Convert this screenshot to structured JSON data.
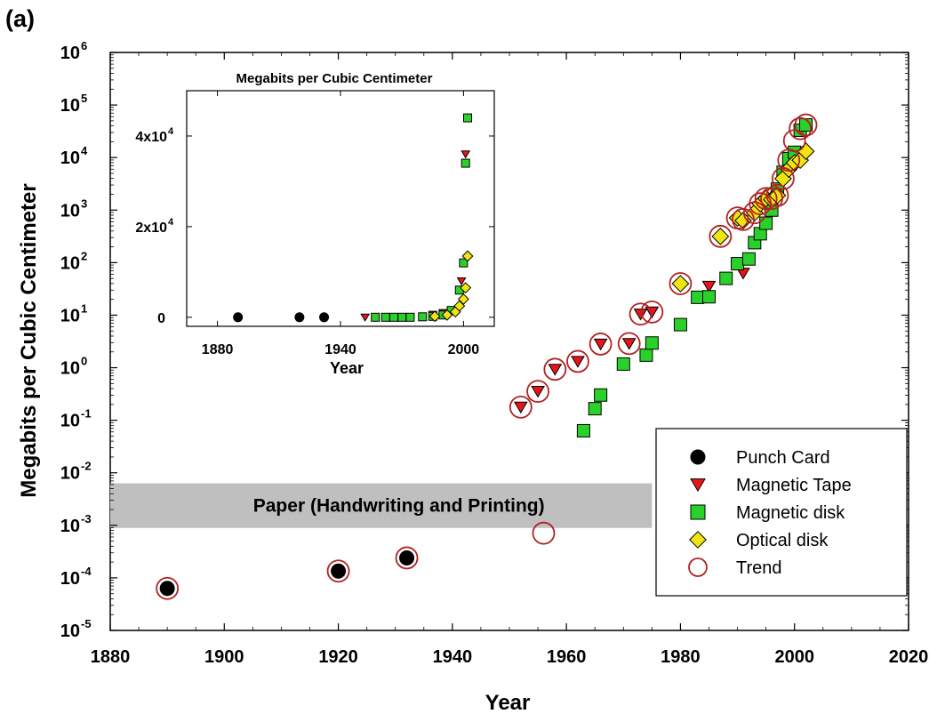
{
  "panel_label": "(a)",
  "chart_data": [
    {
      "id": "main",
      "type": "scatter",
      "title": "",
      "xlabel": "Year",
      "ylabel": "Megabits per Cubic Centimeter",
      "xlim": [
        1880,
        2020
      ],
      "ylim": [
        -5,
        6
      ],
      "yscale": "log",
      "y_values_as": "log10",
      "x_ticks": [
        1880,
        1900,
        1920,
        1940,
        1960,
        1980,
        2000,
        2020
      ],
      "x_tick_labels": [
        "1880",
        "1900",
        "1920",
        "1940",
        "1960",
        "1980",
        "2000",
        "2020"
      ],
      "y_ticks": [
        -5,
        -4,
        -3,
        -2,
        -1,
        0,
        1,
        2,
        3,
        4,
        5,
        6
      ],
      "y_tick_base": "10",
      "grid": false,
      "legend_position": "bottom-right",
      "band": {
        "label": "Paper (Handwriting and Printing)",
        "x": [
          1880,
          1975
        ],
        "y": [
          -3.05,
          -2.2
        ],
        "color": "#bfbfbf"
      },
      "colors": {
        "punch": "#000000",
        "tape": "#e8141b",
        "disk": "#2bd12b",
        "optical": "#f2e413",
        "trend": "#b22222"
      },
      "series": [
        {
          "name": "Punch Card",
          "marker": "circle",
          "x": [
            1890,
            1920,
            1932
          ],
          "y": [
            -4.2,
            -3.87,
            -3.62
          ]
        },
        {
          "name": "Magnetic Tape",
          "marker": "triangle-down",
          "x": [
            1952,
            1955,
            1958,
            1962,
            1966,
            1971,
            1973,
            1975,
            1985,
            1991
          ],
          "y": [
            -0.75,
            -0.45,
            -0.03,
            0.12,
            0.45,
            0.46,
            1.02,
            1.06,
            1.55,
            1.8
          ]
        },
        {
          "name": "Magnetic disk",
          "marker": "square",
          "x": [
            1963,
            1965,
            1966,
            1970,
            1974,
            1975,
            1980,
            1983,
            1985,
            1988,
            1990,
            1992,
            1993,
            1994,
            1995,
            1996,
            1997,
            1998,
            1999,
            2000,
            2001,
            2002
          ],
          "y": [
            -1.2,
            -0.78,
            -0.52,
            0.07,
            0.24,
            0.47,
            0.82,
            1.34,
            1.35,
            1.7,
            1.98,
            2.07,
            2.38,
            2.55,
            2.75,
            3.0,
            3.4,
            3.72,
            3.98,
            4.1,
            4.52,
            4.62
          ]
        },
        {
          "name": "Optical disk",
          "marker": "diamond",
          "x": [
            1980,
            1987,
            1990,
            1991,
            1993,
            1994,
            1995,
            1996,
            1997,
            1998,
            1999,
            2000,
            2001,
            2002
          ],
          "y": [
            1.6,
            2.5,
            2.85,
            2.8,
            2.95,
            3.12,
            3.22,
            3.2,
            3.28,
            3.6,
            3.78,
            3.9,
            3.95,
            4.12
          ]
        },
        {
          "name": "Trend",
          "marker": "ring",
          "x": [
            1890,
            1920,
            1932,
            1952,
            1955,
            1958,
            1962,
            1966,
            1971,
            1973,
            1975,
            1980,
            1987,
            1990,
            1991,
            1993,
            1994,
            1995,
            1996,
            1997,
            1998,
            1999,
            2000,
            2001,
            2002
          ],
          "y": [
            -4.2,
            -3.87,
            -3.62,
            -0.75,
            -0.45,
            -0.03,
            0.12,
            0.45,
            0.46,
            1.02,
            1.06,
            1.6,
            2.5,
            2.85,
            2.82,
            2.95,
            3.12,
            3.22,
            3.22,
            3.28,
            3.6,
            3.95,
            4.32,
            4.55,
            4.62
          ]
        }
      ],
      "off_band_trend_point": {
        "x": 1956,
        "y": -3.15
      }
    },
    {
      "id": "inset",
      "type": "scatter",
      "title": "Megabits per Cubic Centimeter",
      "xlabel": "Year",
      "ylabel": "",
      "xlim": [
        1865,
        2015
      ],
      "ylim": [
        -2000,
        50000
      ],
      "x_ticks": [
        1880,
        1940,
        2000
      ],
      "x_tick_labels": [
        "1880",
        "1940",
        "2000"
      ],
      "y_ticks": [
        0,
        20000,
        40000
      ],
      "y_tick_labels": [
        "0",
        "2x10",
        "4x10"
      ],
      "y_tick_exponents": [
        "",
        "4",
        "4"
      ],
      "grid": false,
      "series": [
        {
          "name": "Punch Card",
          "marker": "circle",
          "x": [
            1890,
            1920,
            1932
          ],
          "y": [
            0,
            0,
            0
          ]
        },
        {
          "name": "Magnetic Tape",
          "marker": "triangle-down",
          "x": [
            1952,
            1985,
            1990,
            1999,
            2001
          ],
          "y": [
            0,
            600,
            1000,
            8000,
            36000
          ]
        },
        {
          "name": "Magnetic disk",
          "marker": "square",
          "x": [
            1957,
            1962,
            1966,
            1970,
            1974,
            1980,
            1985,
            1990,
            1994,
            1998,
            2000,
            2001,
            2002
          ],
          "y": [
            0,
            0,
            0,
            0,
            0,
            100,
            200,
            500,
            1500,
            6000,
            12000,
            34000,
            44000
          ]
        },
        {
          "name": "Optical disk",
          "marker": "diamond",
          "x": [
            1986,
            1992,
            1996,
            1998,
            2000,
            2001,
            2002
          ],
          "y": [
            200,
            500,
            1200,
            2500,
            4000,
            6500,
            13500
          ]
        }
      ]
    }
  ]
}
